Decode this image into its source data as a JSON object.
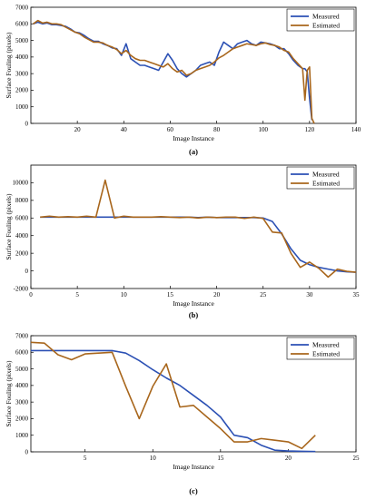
{
  "chart_data": [
    {
      "type": "line",
      "caption": "(a)",
      "xlabel": "Image Instance",
      "ylabel": "Surface Fouling (pixels)",
      "xlim": [
        0,
        140
      ],
      "ylim": [
        0,
        7000
      ],
      "xticks": [
        20,
        40,
        60,
        80,
        100,
        120,
        140
      ],
      "yticks": [
        0,
        1000,
        2000,
        3000,
        4000,
        5000,
        6000,
        7000
      ],
      "legend_position": "top-right",
      "series": [
        {
          "name": "Measured",
          "color": "#2b50b4",
          "x": [
            1,
            3,
            5,
            7,
            9,
            11,
            13,
            15,
            17,
            19,
            21,
            23,
            25,
            27,
            29,
            31,
            33,
            35,
            37,
            39,
            41,
            43,
            45,
            47,
            49,
            51,
            53,
            55,
            57,
            59,
            61,
            63,
            65,
            67,
            69,
            71,
            73,
            75,
            77,
            79,
            81,
            83,
            85,
            87,
            89,
            91,
            93,
            95,
            97,
            99,
            101,
            103,
            105,
            107,
            109,
            111,
            113,
            115,
            117,
            118,
            119,
            120,
            121
          ],
          "y": [
            6000,
            6100,
            6000,
            6050,
            5950,
            5950,
            5900,
            5850,
            5700,
            5500,
            5450,
            5300,
            5100,
            4950,
            4950,
            4800,
            4700,
            4550,
            4500,
            4100,
            4800,
            3900,
            3700,
            3500,
            3500,
            3400,
            3300,
            3200,
            3700,
            4200,
            3800,
            3300,
            3000,
            2800,
            3000,
            3200,
            3500,
            3600,
            3700,
            3500,
            4300,
            4900,
            4700,
            4500,
            4800,
            4900,
            5000,
            4800,
            4700,
            4900,
            4850,
            4800,
            4700,
            4500,
            4500,
            4200,
            3800,
            3500,
            3300,
            3300,
            3100,
            1500,
            200
          ]
        },
        {
          "name": "Estimated",
          "color": "#a8661c",
          "x": [
            1,
            3,
            5,
            7,
            9,
            11,
            13,
            15,
            17,
            19,
            21,
            23,
            25,
            27,
            29,
            31,
            33,
            35,
            37,
            39,
            41,
            43,
            45,
            47,
            49,
            51,
            53,
            55,
            57,
            59,
            61,
            63,
            65,
            67,
            69,
            71,
            73,
            75,
            77,
            79,
            81,
            83,
            85,
            87,
            89,
            91,
            93,
            95,
            97,
            99,
            101,
            103,
            105,
            107,
            109,
            111,
            113,
            115,
            117,
            118,
            119,
            120,
            121,
            122
          ],
          "y": [
            6000,
            6200,
            6050,
            6100,
            6000,
            6000,
            5950,
            5800,
            5650,
            5500,
            5400,
            5200,
            5050,
            4900,
            4900,
            4850,
            4700,
            4600,
            4450,
            4200,
            4400,
            4100,
            3900,
            3800,
            3800,
            3700,
            3600,
            3500,
            3400,
            3600,
            3300,
            3100,
            3200,
            2900,
            3000,
            3200,
            3300,
            3400,
            3500,
            3700,
            3950,
            4100,
            4300,
            4500,
            4600,
            4700,
            4800,
            4750,
            4700,
            4800,
            4850,
            4750,
            4700,
            4600,
            4400,
            4300,
            3900,
            3600,
            3300,
            1400,
            3200,
            3400,
            300,
            0
          ]
        }
      ]
    },
    {
      "type": "line",
      "caption": "(b)",
      "xlabel": "Image Instance",
      "ylabel": "Surface Fouling (pixels)",
      "xlim": [
        0,
        35
      ],
      "ylim": [
        -2000,
        12000
      ],
      "xticks": [
        0,
        5,
        10,
        15,
        20,
        25,
        30,
        35
      ],
      "yticks": [
        -2000,
        0,
        2000,
        4000,
        6000,
        8000,
        10000
      ],
      "legend_position": "top-right",
      "series": [
        {
          "name": "Measured",
          "color": "#2b50b4",
          "x": [
            1,
            2,
            3,
            4,
            5,
            6,
            7,
            8,
            9,
            10,
            11,
            12,
            13,
            14,
            15,
            16,
            17,
            18,
            19,
            20,
            21,
            22,
            23,
            24,
            25,
            26,
            27,
            28,
            29,
            30,
            31,
            32,
            33,
            34,
            35
          ],
          "y": [
            6100,
            6100,
            6100,
            6100,
            6100,
            6100,
            6100,
            6100,
            6100,
            6100,
            6100,
            6100,
            6100,
            6100,
            6100,
            6100,
            6100,
            6050,
            6100,
            6050,
            6050,
            6050,
            6050,
            6050,
            6000,
            5600,
            4200,
            2500,
            1200,
            700,
            400,
            200,
            0,
            -100,
            -150
          ]
        },
        {
          "name": "Estimated",
          "color": "#a8661c",
          "x": [
            1,
            2,
            3,
            4,
            5,
            6,
            7,
            8,
            9,
            10,
            11,
            12,
            13,
            14,
            15,
            16,
            17,
            18,
            19,
            20,
            21,
            22,
            23,
            24,
            25,
            26,
            27,
            28,
            29,
            30,
            31,
            32,
            33,
            34,
            35
          ],
          "y": [
            6100,
            6200,
            6100,
            6150,
            6100,
            6200,
            6100,
            10300,
            6000,
            6200,
            6100,
            6100,
            6100,
            6150,
            6100,
            6050,
            6100,
            6000,
            6100,
            6050,
            6100,
            6100,
            5950,
            6100,
            5950,
            4400,
            4300,
            2000,
            400,
            1000,
            300,
            -700,
            200,
            -50,
            -150
          ]
        }
      ]
    },
    {
      "type": "line",
      "caption": "(c)",
      "xlabel": "Image Instance",
      "ylabel": "Surface Fouling (pixels)",
      "xlim": [
        1,
        25
      ],
      "ylim": [
        0,
        7000
      ],
      "xticks": [
        5,
        10,
        15,
        20,
        25
      ],
      "yticks": [
        0,
        1000,
        2000,
        3000,
        4000,
        5000,
        6000,
        7000
      ],
      "legend_position": "top-right",
      "series": [
        {
          "name": "Measured",
          "color": "#2b50b4",
          "x": [
            1,
            2,
            3,
            4,
            5,
            6,
            7,
            8,
            9,
            10,
            11,
            12,
            13,
            14,
            15,
            16,
            17,
            18,
            19,
            20,
            21,
            22
          ],
          "y": [
            6100,
            6100,
            6100,
            6100,
            6100,
            6100,
            6100,
            5950,
            5500,
            4950,
            4450,
            4000,
            3400,
            2800,
            2100,
            1000,
            850,
            400,
            100,
            50,
            30,
            20
          ]
        },
        {
          "name": "Estimated",
          "color": "#a8661c",
          "x": [
            1,
            2,
            3,
            4,
            5,
            6,
            7,
            8,
            9,
            10,
            11,
            12,
            13,
            14,
            15,
            16,
            17,
            18,
            19,
            20,
            21,
            22
          ],
          "y": [
            6600,
            6550,
            5850,
            5550,
            5900,
            5950,
            6000,
            3950,
            2000,
            3950,
            5300,
            2700,
            2800,
            2100,
            1400,
            600,
            600,
            800,
            700,
            600,
            200,
            1000
          ]
        }
      ]
    }
  ]
}
